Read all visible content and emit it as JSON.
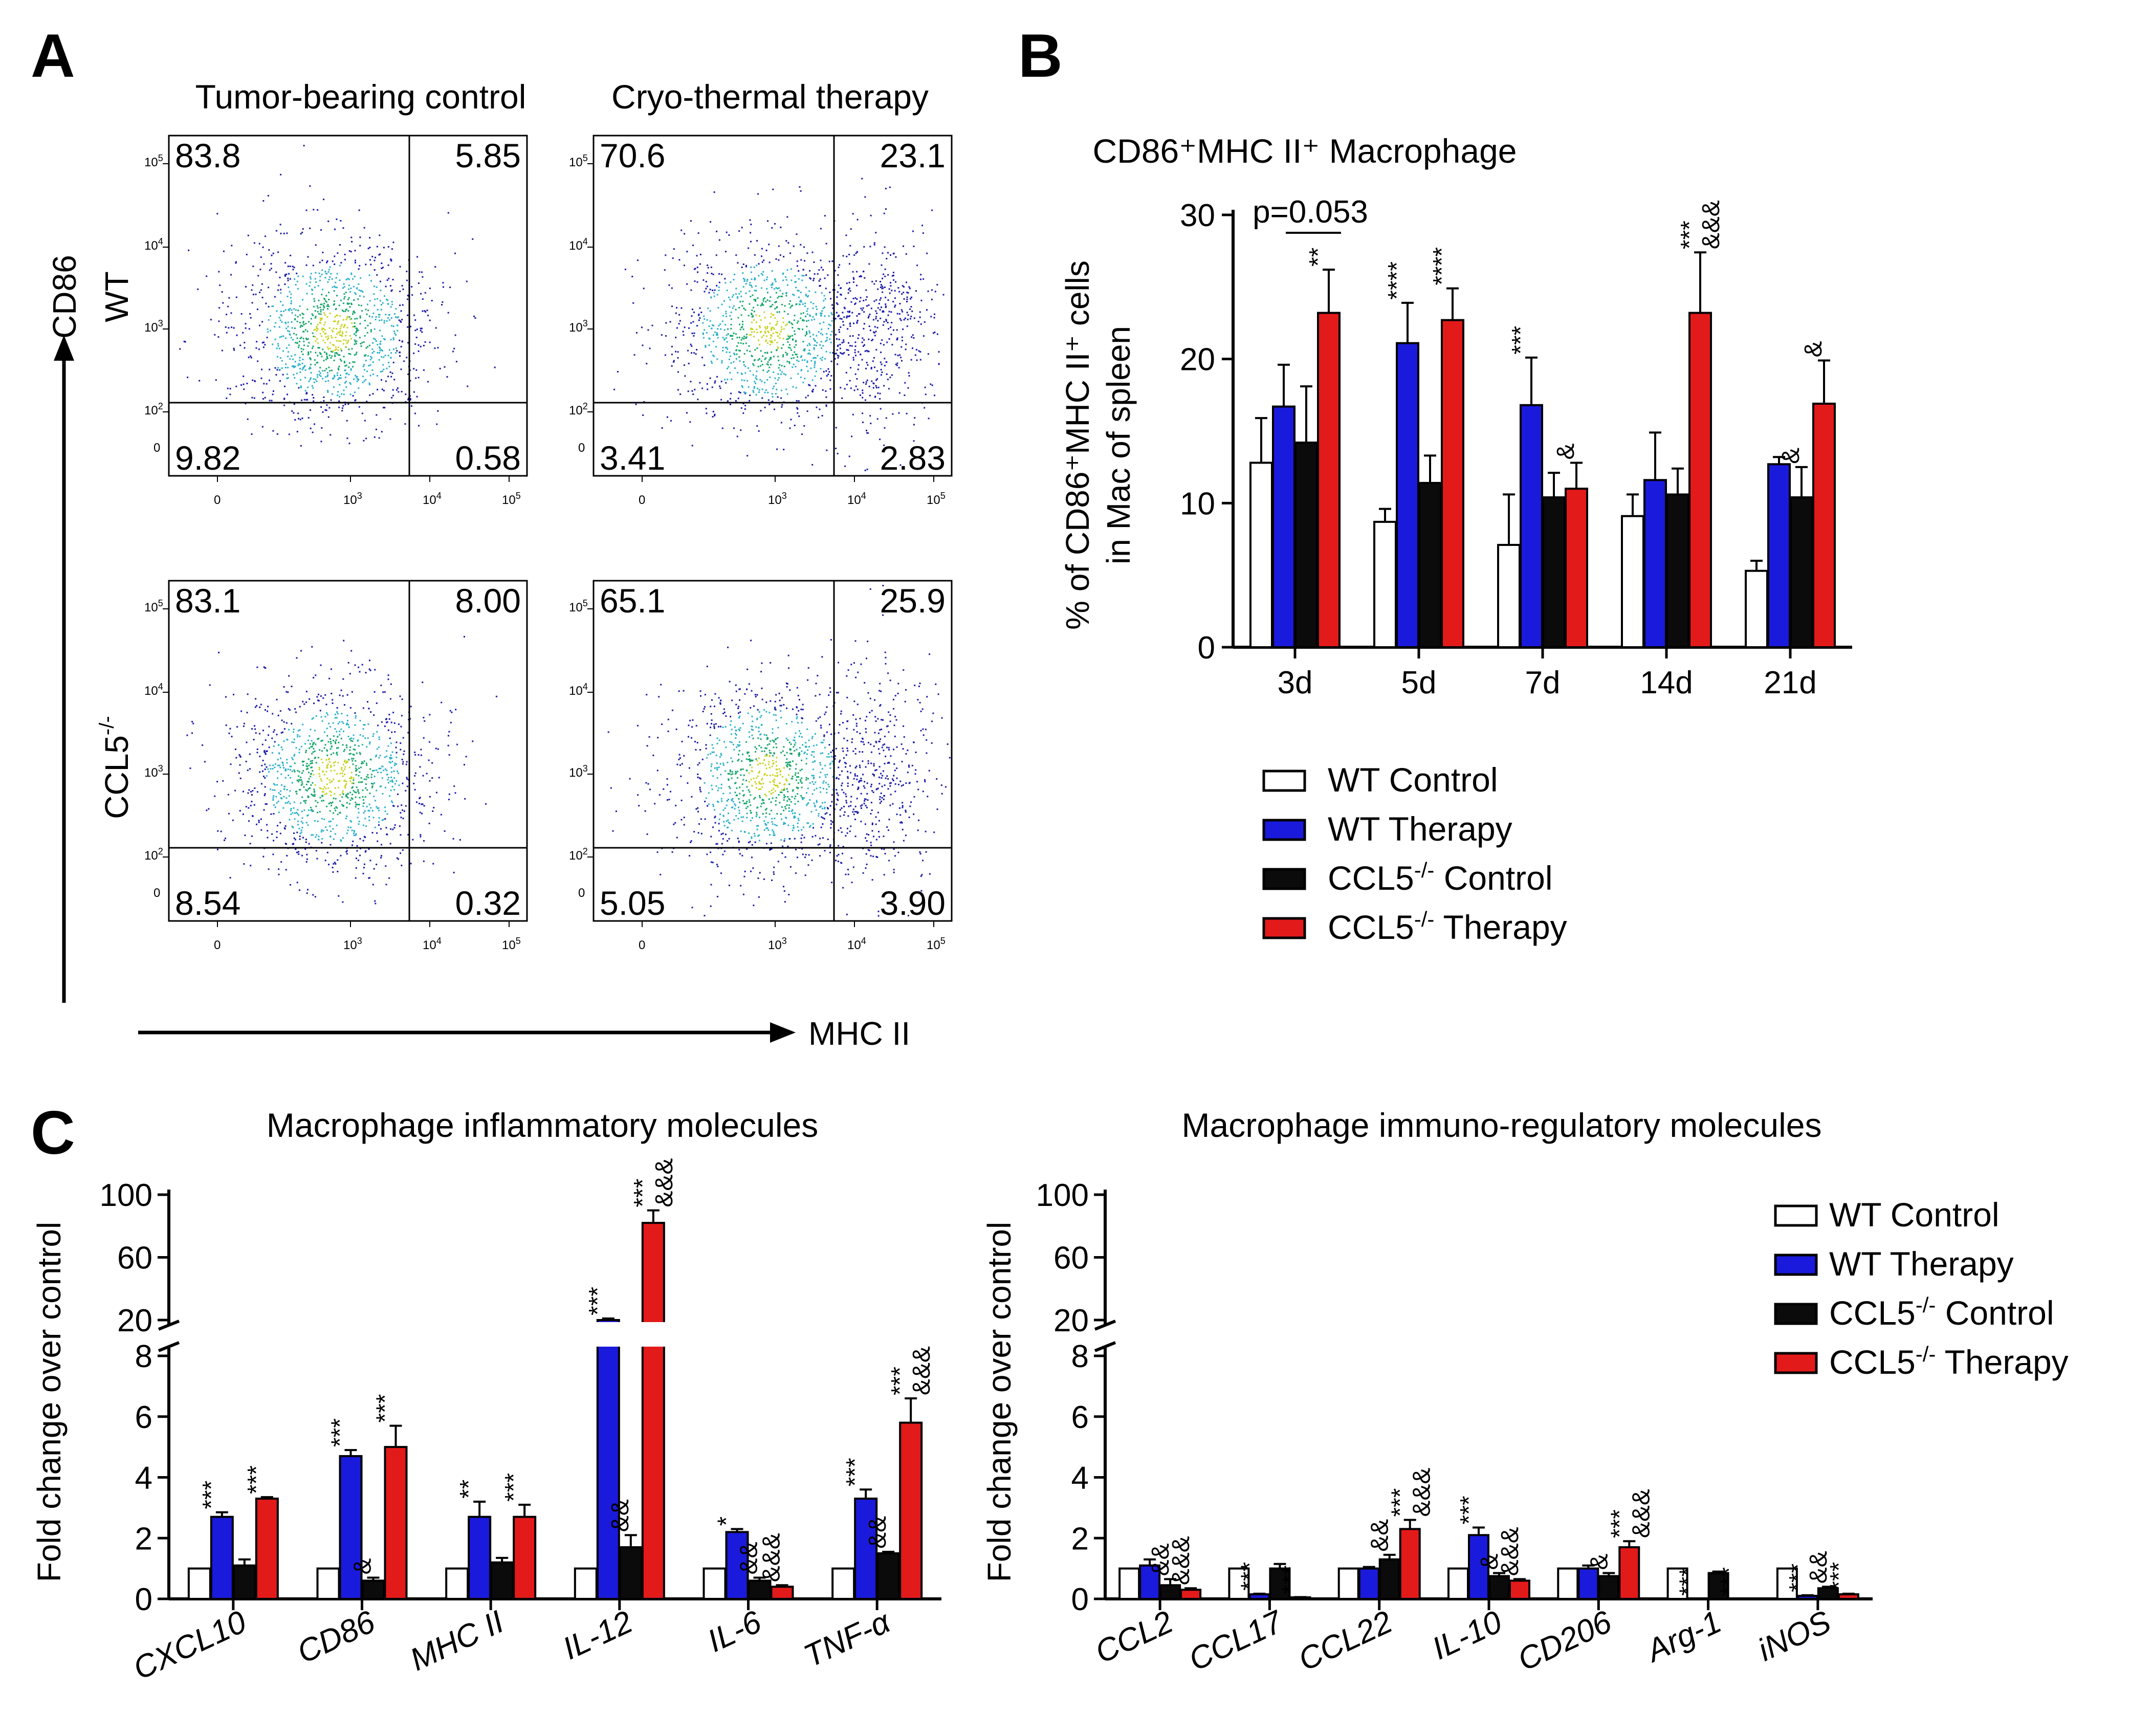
{
  "panel_labels": {
    "a": "A",
    "b": "B",
    "c": "C"
  },
  "colors": {
    "wt_control": "#ffffff",
    "wt_therapy": "#1a1adc",
    "ccl5_control": "#0b0b0b",
    "ccl5_therapy": "#e31a1a"
  },
  "flow": {
    "col_titles": [
      "Tumor-bearing control",
      "Cryo-thermal therapy"
    ],
    "row_labels": {
      "wt": "WT",
      "ccl5_base": "CCL5",
      "ccl5_sup": "-/-"
    },
    "y_axis_label": "CD86",
    "x_axis_label": "MHC II",
    "tick_labels": {
      "zero": "0",
      "base": "10",
      "exps": [
        "2",
        "3",
        "4",
        "5"
      ]
    },
    "plots": [
      {
        "q": [
          "83.8",
          "5.85",
          "9.82",
          "0.58"
        ]
      },
      {
        "q": [
          "70.6",
          "23.1",
          "3.41",
          "2.83"
        ]
      },
      {
        "q": [
          "83.1",
          "8.00",
          "8.54",
          "0.32"
        ]
      },
      {
        "q": [
          "65.1",
          "25.9",
          "5.05",
          "3.90"
        ]
      }
    ]
  },
  "chart_data": [
    {
      "panel": "B",
      "type": "bar",
      "title": "CD86⁺MHC II⁺ Macrophage",
      "ylabel_line1": "% of CD86⁺MHC II⁺ cells",
      "ylabel_line2": "in Mac of spleen",
      "ylim": [
        0,
        30
      ],
      "yticks": [
        "0",
        "10",
        "20",
        "30"
      ],
      "categories": [
        "3d",
        "5d",
        "7d",
        "14d",
        "21d"
      ],
      "series": [
        {
          "name": "WT Control",
          "values": [
            12.8,
            8.7,
            7.1,
            9.1,
            5.3
          ],
          "errors": [
            3.1,
            0.9,
            3.5,
            1.5,
            0.7
          ],
          "marks": [
            "",
            "",
            "",
            "",
            ""
          ]
        },
        {
          "name": "WT Therapy",
          "values": [
            16.7,
            21.1,
            16.8,
            11.6,
            12.7
          ],
          "errors": [
            2.9,
            2.8,
            3.3,
            3.3,
            0.5
          ],
          "marks": [
            "",
            "****",
            "***",
            "",
            ""
          ]
        },
        {
          "name": "CCL5-/- Control",
          "values": [
            14.2,
            11.4,
            10.4,
            10.6,
            10.4
          ],
          "errors": [
            3.9,
            1.9,
            1.7,
            1.8,
            2.1
          ],
          "marks": [
            "",
            "",
            "",
            "",
            "&"
          ]
        },
        {
          "name": "CCL5-/- Therapy",
          "values": [
            23.2,
            22.7,
            11.0,
            23.2,
            16.9
          ],
          "errors": [
            3.0,
            2.2,
            1.8,
            4.2,
            3.0
          ],
          "marks": [
            "**",
            "****",
            "&",
            "***\n&&&",
            "&"
          ]
        }
      ],
      "annotation": "p=0.053",
      "legend": [
        "WT Control",
        "WT Therapy",
        "CCL5",
        "Control",
        "CCL5",
        "Therapy"
      ],
      "legend_sup": "-/-"
    },
    {
      "panel": "C1",
      "type": "bar",
      "title": "Macrophage inflammatory molecules",
      "ylabel": "Fold change over control",
      "yticks_lower": [
        "0",
        "2",
        "4",
        "6",
        "8"
      ],
      "yticks_upper": [
        "20",
        "60",
        "100"
      ],
      "categories": [
        "CXCL10",
        "CD86",
        "MHC II",
        "IL-12",
        "IL-6",
        "TNF-α"
      ],
      "series": [
        {
          "name": "WT Control",
          "values": [
            1.0,
            1.0,
            1.0,
            1.0,
            1.0,
            1.0
          ],
          "errors": [
            0,
            0,
            0,
            0,
            0,
            0
          ],
          "marks": [
            "",
            "",
            "",
            "",
            "",
            ""
          ]
        },
        {
          "name": "WT Therapy",
          "values": [
            2.7,
            4.7,
            2.7,
            20.0,
            2.2,
            3.3
          ],
          "errors": [
            0.15,
            0.2,
            0.5,
            1.0,
            0.1,
            0.3
          ],
          "marks": [
            "***",
            "***",
            "**",
            "***",
            "*",
            "***"
          ]
        },
        {
          "name": "CCL5-/- Control",
          "values": [
            1.1,
            0.6,
            1.2,
            1.7,
            0.6,
            1.5
          ],
          "errors": [
            0.2,
            0.1,
            0.15,
            0.4,
            0.1,
            0.05
          ],
          "marks": [
            "",
            "&",
            "",
            "&&",
            "&&",
            "&&"
          ]
        },
        {
          "name": "CCL5-/- Therapy",
          "values": [
            3.3,
            5.0,
            2.7,
            82.0,
            0.4,
            5.8
          ],
          "errors": [
            0.05,
            0.7,
            0.4,
            8.0,
            0.05,
            0.8
          ],
          "marks": [
            "***",
            "***",
            "***",
            "***\n&&&",
            "&&&",
            "***\n&&&"
          ]
        }
      ]
    },
    {
      "panel": "C2",
      "type": "bar",
      "title": "Macrophage immuno-regulatory molecules",
      "ylabel": "Fold change over control",
      "yticks_lower": [
        "0",
        "2",
        "4",
        "6",
        "8"
      ],
      "yticks_upper": [
        "20",
        "60",
        "100"
      ],
      "categories": [
        "CCL2",
        "CCL17",
        "CCL22",
        "IL-10",
        "CD206",
        "Arg-1",
        "iNOS"
      ],
      "series": [
        {
          "name": "WT Control",
          "values": [
            1.0,
            1.0,
            1.0,
            1.0,
            1.0,
            1.0,
            1.0
          ],
          "errors": [
            0,
            0,
            0,
            0,
            0,
            0,
            0
          ],
          "marks": [
            "",
            "",
            "",
            "",
            "",
            "",
            ""
          ]
        },
        {
          "name": "WT Therapy",
          "values": [
            1.1,
            0.15,
            1.0,
            2.1,
            1.0,
            0.0,
            0.1
          ],
          "errors": [
            0.2,
            0.02,
            0.05,
            0.25,
            0.1,
            0,
            0.02
          ],
          "marks": [
            "",
            "***",
            "",
            "***",
            "",
            "***",
            "***"
          ]
        },
        {
          "name": "CCL5-/- Control",
          "values": [
            0.45,
            1.0,
            1.3,
            0.75,
            0.75,
            0.85,
            0.35
          ],
          "errors": [
            0.2,
            0.15,
            0.15,
            0.1,
            0.1,
            0.05,
            0.05
          ],
          "marks": [
            "&&",
            "",
            "&&",
            "&",
            "&",
            "",
            "&&"
          ]
        },
        {
          "name": "CCL5-/- Therapy",
          "values": [
            0.3,
            0.05,
            2.3,
            0.6,
            1.7,
            0.0,
            0.15
          ],
          "errors": [
            0.05,
            0.01,
            0.3,
            0.05,
            0.2,
            0,
            0.02
          ],
          "marks": [
            "&&&",
            "***",
            "***\n&&&",
            "&&&",
            "***\n&&&",
            "***",
            "***"
          ]
        }
      ],
      "legend": [
        "WT Control",
        "WT Therapy",
        "CCL5",
        "Control",
        "CCL5",
        "Therapy"
      ],
      "legend_sup": "-/-"
    }
  ]
}
